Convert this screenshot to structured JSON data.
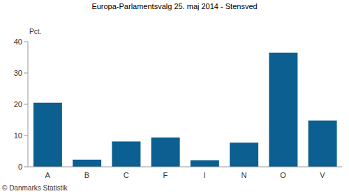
{
  "chart_data": {
    "type": "bar",
    "title": "Europa-Parlamentsvalg 25. maj 2014 - Stensved",
    "ylabel": "Pct.",
    "source": "© Danmarks Statistik",
    "categories": [
      "A",
      "B",
      "C",
      "F",
      "I",
      "N",
      "O",
      "V"
    ],
    "values": [
      20.5,
      2.3,
      8.1,
      9.4,
      2.1,
      7.7,
      36.5,
      14.8
    ],
    "color": "#0b5f91",
    "ylim": [
      0,
      40
    ],
    "yticks": [
      0,
      10,
      20,
      30,
      40
    ],
    "grid": false
  }
}
